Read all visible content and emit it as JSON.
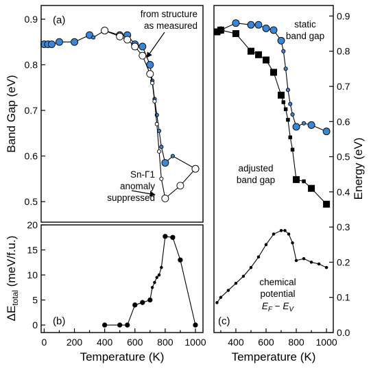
{
  "colors": {
    "blue": "#3a86d8",
    "black": "#000000",
    "white": "#ffffff"
  },
  "chart_data": [
    {
      "type": "line",
      "panel_label": "(a)",
      "xlabel": "",
      "ylabel": "Band Gap (eV)",
      "xlim": [
        -20,
        1050
      ],
      "ylim": [
        0.455,
        0.93
      ],
      "yticks": [
        "0.5",
        "0.6",
        "0.7",
        "0.8",
        "0.9"
      ],
      "series": [
        {
          "marker": "circle",
          "fill": "#3a86d8",
          "points": [
            [
              0,
              0.845
            ],
            [
              25,
              0.845
            ],
            [
              50,
              0.845
            ],
            [
              100,
              0.85
            ],
            [
              200,
              0.85
            ],
            [
              300,
              0.865
            ],
            [
              325,
              0.86
            ],
            [
              400,
              0.875
            ],
            [
              500,
              0.865
            ],
            [
              550,
              0.865
            ],
            [
              600,
              0.845
            ],
            [
              650,
              0.84
            ],
            [
              700,
              0.8
            ],
            [
              715,
              0.765
            ],
            [
              730,
              0.725
            ],
            [
              745,
              0.69
            ],
            [
              760,
              0.655
            ],
            [
              775,
              0.62
            ],
            [
              800,
              0.585
            ],
            [
              850,
              0.6
            ],
            [
              1000,
              0.572
            ]
          ],
          "small": [
            0,
            0,
            0,
            0,
            0,
            0,
            1,
            0,
            0,
            0,
            0,
            0,
            0,
            1,
            1,
            1,
            1,
            1,
            0,
            1,
            0
          ]
        },
        {
          "marker": "circle",
          "fill": "#ffffff",
          "points": [
            [
              400,
              0.875
            ],
            [
              500,
              0.862
            ],
            [
              550,
              0.855
            ],
            [
              600,
              0.84
            ],
            [
              650,
              0.82
            ],
            [
              700,
              0.78
            ],
            [
              715,
              0.76
            ],
            [
              730,
              0.72
            ],
            [
              745,
              0.67
            ],
            [
              760,
              0.61
            ],
            [
              775,
              0.55
            ],
            [
              800,
              0.507
            ],
            [
              900,
              0.535
            ],
            [
              1000,
              0.572
            ]
          ],
          "small": [
            0,
            0,
            0,
            0,
            0,
            0,
            1,
            1,
            1,
            1,
            1,
            0,
            0,
            0
          ]
        }
      ],
      "annotations": [
        {
          "lines": [
            "from structure",
            "as measured"
          ]
        },
        {
          "lines": [
            "Sn-Γ1",
            "anomaly",
            "suppressed"
          ]
        }
      ]
    },
    {
      "type": "line",
      "panel_label": "(b)",
      "xlabel": "Temperature (K)",
      "ylabel_main": "ΔE",
      "ylabel_sub": "total",
      "ylabel_unit": " (meV/f.u.)",
      "xlim": [
        -20,
        1050
      ],
      "ylim": [
        -1.5,
        20
      ],
      "xticks": [
        "0",
        "200",
        "400",
        "600",
        "800",
        "1000"
      ],
      "yticks": [
        "0",
        "5",
        "10",
        "15",
        "20"
      ],
      "series": [
        {
          "marker": "circle",
          "fill": "#000000",
          "points": [
            [
              400,
              0
            ],
            [
              500,
              0
            ],
            [
              550,
              0
            ],
            [
              600,
              4
            ],
            [
              650,
              4.5
            ],
            [
              700,
              5
            ],
            [
              715,
              7.5
            ],
            [
              730,
              8.5
            ],
            [
              745,
              9.5
            ],
            [
              760,
              10
            ],
            [
              775,
              11.5
            ],
            [
              800,
              17.7
            ],
            [
              850,
              17.5
            ],
            [
              900,
              13
            ],
            [
              1000,
              0
            ]
          ],
          "small": [
            0,
            0,
            0,
            0,
            0,
            0,
            1,
            1,
            1,
            1,
            1,
            0,
            0,
            0,
            0
          ]
        }
      ]
    },
    {
      "type": "line",
      "panel_label": "(c)",
      "xlabel": "Temperature (K)",
      "ylabel": "Energy (eV)",
      "xlim": [
        255,
        1045
      ],
      "ylim": [
        0,
        0.93
      ],
      "xticks": [
        "400",
        "600",
        "800",
        "1000"
      ],
      "yticks": [
        "0.0",
        "0.1",
        "0.2",
        "0.3",
        "0.4",
        "0.5",
        "0.6",
        "0.7",
        "0.8",
        "0.9"
      ],
      "series": [
        {
          "marker": "circle",
          "fill": "#3a86d8",
          "points": [
            [
              300,
              0.86
            ],
            [
              400,
              0.88
            ],
            [
              500,
              0.875
            ],
            [
              550,
              0.875
            ],
            [
              600,
              0.865
            ],
            [
              650,
              0.86
            ],
            [
              700,
              0.83
            ],
            [
              715,
              0.8
            ],
            [
              730,
              0.75
            ],
            [
              745,
              0.69
            ],
            [
              760,
              0.65
            ],
            [
              775,
              0.62
            ],
            [
              800,
              0.585
            ],
            [
              850,
              0.595
            ],
            [
              900,
              0.59
            ],
            [
              1000,
              0.572
            ]
          ],
          "small": [
            0,
            0,
            0,
            0,
            0,
            0,
            0,
            1,
            1,
            1,
            1,
            1,
            0,
            1,
            0,
            0
          ]
        },
        {
          "marker": "square",
          "fill": "#000000",
          "points": [
            [
              275,
              0.855
            ],
            [
              300,
              0.86
            ],
            [
              400,
              0.85
            ],
            [
              500,
              0.8
            ],
            [
              550,
              0.79
            ],
            [
              600,
              0.775
            ],
            [
              650,
              0.74
            ],
            [
              700,
              0.675
            ],
            [
              715,
              0.655
            ],
            [
              730,
              0.635
            ],
            [
              745,
              0.605
            ],
            [
              760,
              0.555
            ],
            [
              775,
              0.52
            ],
            [
              800,
              0.435
            ],
            [
              850,
              0.43
            ],
            [
              900,
              0.41
            ],
            [
              1000,
              0.365
            ]
          ],
          "small": [
            0,
            0,
            0,
            0,
            0,
            0,
            0,
            0,
            1,
            1,
            1,
            1,
            1,
            0,
            1,
            0,
            0
          ]
        },
        {
          "marker": "circle",
          "fill": "#000000",
          "points": [
            [
              275,
              0.085
            ],
            [
              300,
              0.1
            ],
            [
              350,
              0.12
            ],
            [
              400,
              0.14
            ],
            [
              450,
              0.16
            ],
            [
              500,
              0.185
            ],
            [
              550,
              0.215
            ],
            [
              600,
              0.25
            ],
            [
              650,
              0.28
            ],
            [
              700,
              0.29
            ],
            [
              725,
              0.29
            ],
            [
              750,
              0.28
            ],
            [
              775,
              0.255
            ],
            [
              800,
              0.205
            ],
            [
              850,
              0.21
            ],
            [
              900,
              0.2
            ],
            [
              950,
              0.195
            ],
            [
              1000,
              0.185
            ]
          ],
          "small": [
            1,
            1,
            1,
            1,
            1,
            1,
            1,
            1,
            1,
            1,
            1,
            1,
            1,
            1,
            1,
            1,
            1,
            1
          ]
        }
      ],
      "annotations": [
        {
          "lines": [
            "static",
            "band gap"
          ]
        },
        {
          "lines": [
            "adjusted",
            "band gap"
          ]
        },
        {
          "lines": [
            "chemical",
            "potential"
          ]
        }
      ],
      "formula": {
        "main1": "E",
        "sub1": "F",
        "mid": " − ",
        "main2": "E",
        "sub2": "V"
      }
    }
  ]
}
